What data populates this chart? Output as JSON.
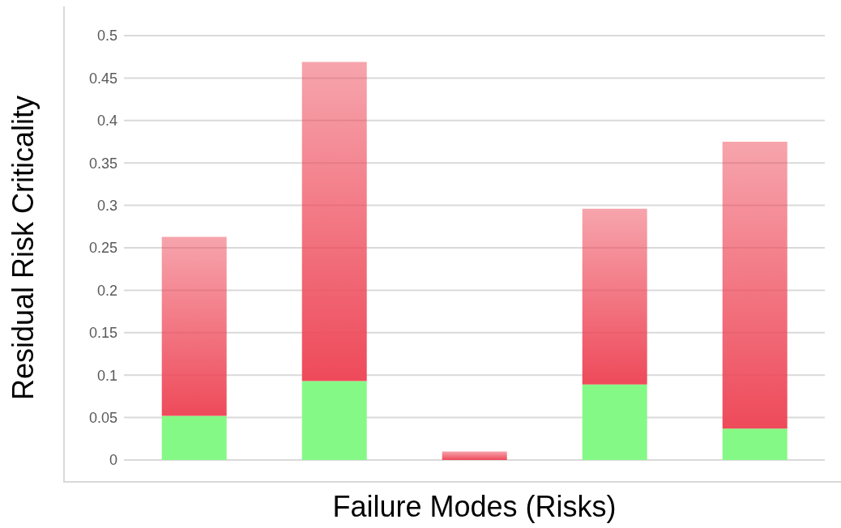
{
  "chart_data": {
    "type": "bar",
    "stacked": true,
    "xlabel": "Failure Modes (Risks)",
    "ylabel": "Residual Risk Criticality",
    "categories": [
      null,
      null,
      null,
      null,
      null
    ],
    "series": [
      {
        "color": "#85f985",
        "values": [
          0.052,
          0.093,
          0,
          0.089,
          0.037
        ]
      },
      {
        "color": "#ee4a5a",
        "values": [
          0.211,
          0.376,
          0.01,
          0.207,
          0.338
        ]
      }
    ],
    "ylim": [
      0,
      0.5
    ],
    "yticks": [
      0,
      0.05,
      0.1,
      0.15,
      0.2,
      0.25,
      0.3,
      0.35,
      0.4,
      0.45,
      0.5
    ],
    "grid": "y",
    "tick_labels": "y"
  }
}
